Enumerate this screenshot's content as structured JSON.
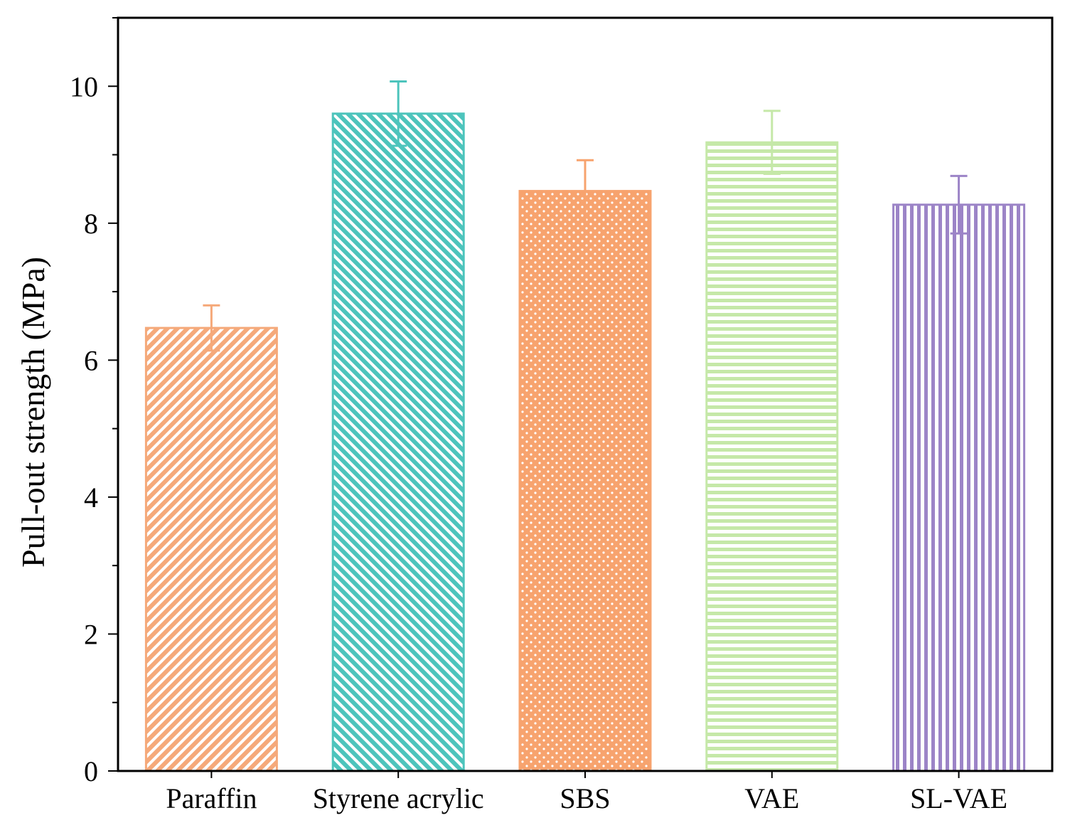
{
  "chart_data": {
    "type": "bar",
    "title": "",
    "xlabel": "",
    "ylabel": "Pull-out strength (MPa)",
    "ylim": [
      0,
      11
    ],
    "yticks": [
      0,
      2,
      4,
      6,
      8,
      10
    ],
    "y_minor_step": 1,
    "grid": false,
    "categories": [
      "Paraffin",
      "Styrene acrylic",
      "SBS",
      "VAE",
      "SL-VAE"
    ],
    "values": [
      6.47,
      9.6,
      8.47,
      9.18,
      8.27
    ],
    "errors": [
      0.33,
      0.47,
      0.45,
      0.46,
      0.42
    ],
    "colors": [
      "#F5A97A",
      "#4DC4BC",
      "#F7A36E",
      "#C5E8A8",
      "#9C84C7"
    ],
    "patterns": [
      "diag-fwd",
      "diag-back",
      "crosshatch-dots",
      "horizontal",
      "vertical"
    ],
    "ytick_labels": [
      "0",
      "2",
      "4",
      "6",
      "8",
      "10"
    ]
  }
}
